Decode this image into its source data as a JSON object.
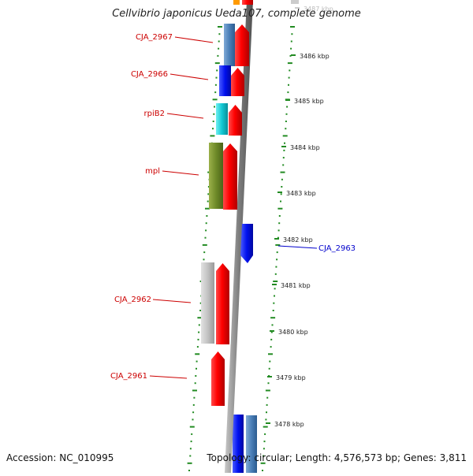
{
  "map": {
    "title": "Cellvibrio japonicus Ueda107, complete genome",
    "accession": "Accession: NC_010995",
    "topology": "Topology: circular; Length: 4,576,573 bp; Genes: 3,811"
  },
  "scale": {
    "ticks": [
      "3487 kbp",
      "3486 kbp",
      "3485 kbp",
      "3484 kbp",
      "3483 kbp",
      "3482 kbp",
      "3481 kbp",
      "3480 kbp",
      "3479 kbp",
      "3478 kbp"
    ]
  },
  "genes": [
    {
      "label": "CJA_2967",
      "color": "#cc0000"
    },
    {
      "label": "CJA_2966",
      "color": "#cc0000"
    },
    {
      "label": "rpiB2",
      "color": "#cc0000"
    },
    {
      "label": "mpl",
      "color": "#cc0000"
    },
    {
      "label": "CJA_2963",
      "color": "#0000cc"
    },
    {
      "label": "CJA_2962",
      "color": "#cc0000"
    },
    {
      "label": "CJA_2961",
      "color": "#cc0000"
    }
  ],
  "colors": {
    "cds": "#ff0000",
    "backbone": "#8a8a8a",
    "tick": "#228b22",
    "forward_label": "#cc0000",
    "reverse_label": "#0000cc"
  }
}
